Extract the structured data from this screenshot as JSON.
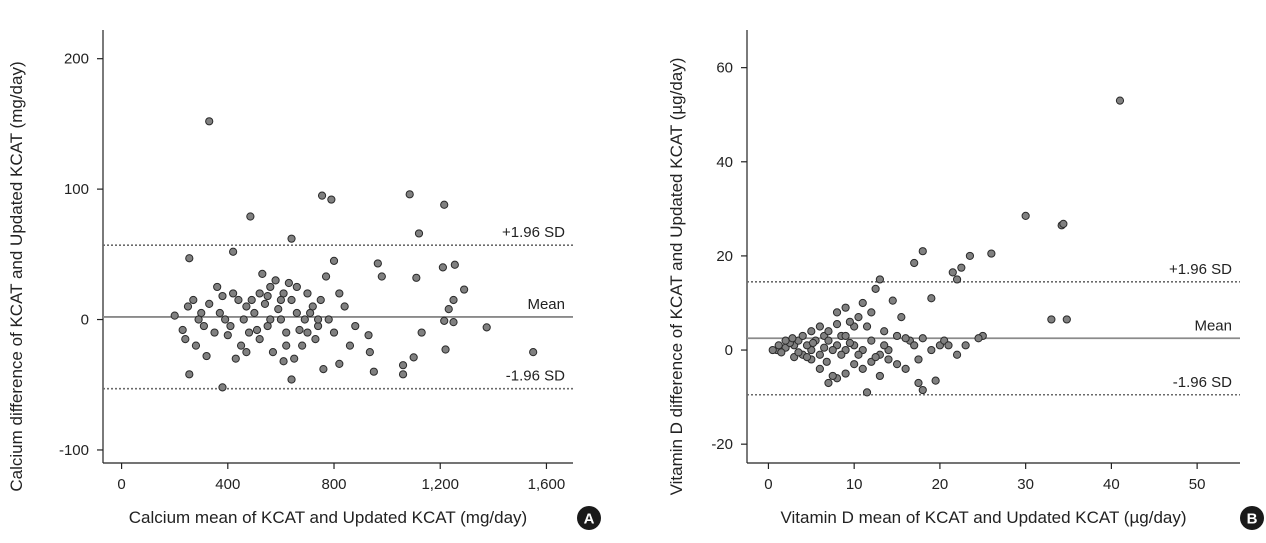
{
  "chart_data": [
    {
      "panel": "A",
      "type": "scatter",
      "xlabel": "Calcium mean of KCAT and Updated KCAT (mg/day)",
      "ylabel": "Calcium difference of KCAT and Updated KCAT (mg/day)",
      "xlim": [
        -70,
        1700
      ],
      "ylim": [
        -110,
        222
      ],
      "xticks": [
        0,
        400,
        800,
        1200,
        1600
      ],
      "xtick_labels": [
        "0",
        "400",
        "800",
        "1,200",
        "1,600"
      ],
      "yticks": [
        -100,
        0,
        100,
        200
      ],
      "ytick_labels": [
        "-100",
        "0",
        "100",
        "200"
      ],
      "reference_lines": [
        {
          "label": "+1.96 SD",
          "value": 57,
          "style": "dotted"
        },
        {
          "label": "Mean",
          "value": 2,
          "style": "solid"
        },
        {
          "label": "-1.96 SD",
          "value": -53,
          "style": "dotted"
        }
      ],
      "points": [
        [
          330,
          152
        ],
        [
          755,
          95
        ],
        [
          790,
          92
        ],
        [
          1085,
          96
        ],
        [
          1215,
          88
        ],
        [
          485,
          79
        ],
        [
          640,
          62
        ],
        [
          1120,
          66
        ],
        [
          420,
          52
        ],
        [
          255,
          47
        ],
        [
          800,
          45
        ],
        [
          965,
          43
        ],
        [
          1210,
          40
        ],
        [
          1255,
          42
        ],
        [
          1290,
          23
        ],
        [
          1110,
          32
        ],
        [
          980,
          33
        ],
        [
          770,
          33
        ],
        [
          820,
          20
        ],
        [
          1250,
          15
        ],
        [
          1232,
          8
        ],
        [
          1215,
          -1
        ],
        [
          1250,
          -2
        ],
        [
          1375,
          -6
        ],
        [
          1220,
          -23
        ],
        [
          1550,
          -25
        ],
        [
          1130,
          -10
        ],
        [
          1060,
          -35
        ],
        [
          1100,
          -29
        ],
        [
          1060,
          -42
        ],
        [
          930,
          -12
        ],
        [
          935,
          -25
        ],
        [
          950,
          -40
        ],
        [
          880,
          -5
        ],
        [
          255,
          -42
        ],
        [
          380,
          -52
        ],
        [
          640,
          -46
        ],
        [
          760,
          -38
        ],
        [
          820,
          -34
        ],
        [
          300,
          5
        ],
        [
          350,
          -10
        ],
        [
          420,
          20
        ],
        [
          470,
          10
        ],
        [
          520,
          -15
        ],
        [
          560,
          25
        ],
        [
          600,
          0
        ],
        [
          640,
          15
        ],
        [
          680,
          -20
        ],
        [
          720,
          10
        ],
        [
          270,
          15
        ],
        [
          310,
          -5
        ],
        [
          390,
          0
        ],
        [
          450,
          -20
        ],
        [
          500,
          5
        ],
        [
          550,
          -5
        ],
        [
          580,
          30
        ],
        [
          620,
          -10
        ],
        [
          660,
          5
        ],
        [
          700,
          20
        ],
        [
          740,
          -5
        ],
        [
          780,
          0
        ],
        [
          840,
          10
        ],
        [
          280,
          -20
        ],
        [
          360,
          25
        ],
        [
          430,
          -30
        ],
        [
          490,
          15
        ],
        [
          530,
          35
        ],
        [
          570,
          -25
        ],
        [
          610,
          20
        ],
        [
          650,
          -30
        ],
        [
          690,
          0
        ],
        [
          730,
          -15
        ],
        [
          200,
          3
        ],
        [
          230,
          -8
        ],
        [
          250,
          10
        ],
        [
          330,
          12
        ],
        [
          400,
          -12
        ],
        [
          460,
          0
        ],
        [
          510,
          -8
        ],
        [
          540,
          12
        ],
        [
          590,
          8
        ],
        [
          630,
          28
        ],
        [
          670,
          -8
        ],
        [
          710,
          5
        ],
        [
          750,
          15
        ],
        [
          800,
          -10
        ],
        [
          860,
          -20
        ],
        [
          290,
          0
        ],
        [
          370,
          5
        ],
        [
          410,
          -5
        ],
        [
          440,
          15
        ],
        [
          480,
          -10
        ],
        [
          520,
          20
        ],
        [
          560,
          0
        ],
        [
          600,
          15
        ],
        [
          620,
          -20
        ],
        [
          660,
          25
        ],
        [
          700,
          -10
        ],
        [
          740,
          0
        ],
        [
          240,
          -15
        ],
        [
          320,
          -28
        ],
        [
          380,
          18
        ],
        [
          470,
          -25
        ],
        [
          550,
          18
        ],
        [
          610,
          -32
        ]
      ]
    },
    {
      "panel": "B",
      "type": "scatter",
      "xlabel": "Vitamin D mean of KCAT and Updated KCAT (µg/day)",
      "ylabel": "Vitamin D difference of KCAT and Updated KCAT (µg/day)",
      "xlim": [
        -2.5,
        55
      ],
      "ylim": [
        -24,
        68
      ],
      "xticks": [
        0,
        10,
        20,
        30,
        40,
        50
      ],
      "xtick_labels": [
        "0",
        "10",
        "20",
        "30",
        "40",
        "50"
      ],
      "yticks": [
        -20,
        0,
        20,
        40,
        60
      ],
      "ytick_labels": [
        "-20",
        "0",
        "20",
        "40",
        "60"
      ],
      "reference_lines": [
        {
          "label": "+1.96 SD",
          "value": 14.5,
          "style": "dotted"
        },
        {
          "label": "Mean",
          "value": 2.5,
          "style": "solid"
        },
        {
          "label": "-1.96 SD",
          "value": -9.5,
          "style": "dotted"
        }
      ],
      "points": [
        [
          41,
          53
        ],
        [
          30,
          28.5
        ],
        [
          34.2,
          26.5
        ],
        [
          34.4,
          26.8
        ],
        [
          26,
          20.5
        ],
        [
          23.5,
          20
        ],
        [
          22.5,
          17.5
        ],
        [
          21.5,
          16.5
        ],
        [
          18,
          21
        ],
        [
          17,
          18.5
        ],
        [
          22,
          15
        ],
        [
          13,
          15
        ],
        [
          19,
          11
        ],
        [
          33,
          6.5
        ],
        [
          34.8,
          6.5
        ],
        [
          25,
          3
        ],
        [
          24.5,
          2.5
        ],
        [
          20,
          1
        ],
        [
          16.5,
          2
        ],
        [
          14,
          0
        ],
        [
          11.5,
          -9
        ],
        [
          17.5,
          -7
        ],
        [
          18,
          -8.5
        ],
        [
          19.5,
          -6.5
        ],
        [
          13,
          -5.5
        ],
        [
          12.5,
          13
        ],
        [
          12,
          8
        ],
        [
          10,
          5
        ],
        [
          9,
          9
        ],
        [
          8,
          8
        ],
        [
          8.5,
          3
        ],
        [
          10.5,
          7
        ],
        [
          11,
          10
        ],
        [
          11.5,
          5
        ],
        [
          9.5,
          6
        ],
        [
          12,
          2
        ],
        [
          13.5,
          4
        ],
        [
          14.5,
          10.5
        ],
        [
          15.5,
          7
        ],
        [
          16,
          2.5
        ],
        [
          17,
          1
        ],
        [
          18,
          2.5
        ],
        [
          19,
          0
        ],
        [
          20.5,
          2
        ],
        [
          21,
          1
        ],
        [
          22,
          -1
        ],
        [
          23,
          1
        ],
        [
          15,
          -3
        ],
        [
          16,
          -4
        ],
        [
          14,
          -2
        ],
        [
          13,
          -1
        ],
        [
          10,
          -3
        ],
        [
          9,
          -5
        ],
        [
          8,
          -6
        ],
        [
          7,
          -7
        ],
        [
          6,
          -4
        ],
        [
          7.5,
          -5.5
        ],
        [
          12,
          -2.5
        ],
        [
          11,
          -4
        ],
        [
          4,
          -1
        ],
        [
          5,
          0
        ],
        [
          3,
          1
        ],
        [
          2,
          0.5
        ],
        [
          1,
          0
        ],
        [
          0.5,
          0
        ],
        [
          1.5,
          -0.5
        ],
        [
          2.5,
          1.5
        ],
        [
          3.5,
          2
        ],
        [
          4.5,
          1
        ],
        [
          5.5,
          2
        ],
        [
          6.5,
          3
        ],
        [
          7,
          2
        ],
        [
          8,
          1
        ],
        [
          9,
          0
        ],
        [
          5,
          -2
        ],
        [
          6,
          -1
        ],
        [
          3,
          -1.5
        ],
        [
          4,
          3
        ],
        [
          5,
          4
        ],
        [
          6,
          5
        ],
        [
          7,
          4
        ],
        [
          8,
          5.5
        ],
        [
          9,
          3
        ],
        [
          10,
          1
        ],
        [
          2,
          2
        ],
        [
          3.5,
          -0.5
        ],
        [
          4.5,
          -1.5
        ],
        [
          6.5,
          0.5
        ],
        [
          7.5,
          0
        ],
        [
          8.5,
          -1
        ],
        [
          11,
          0
        ],
        [
          12.5,
          -1.5
        ],
        [
          1.2,
          1
        ],
        [
          2.8,
          2.5
        ],
        [
          5.2,
          1.5
        ],
        [
          6.8,
          -2.5
        ],
        [
          9.5,
          1.5
        ],
        [
          10.5,
          -1
        ],
        [
          13.5,
          1
        ],
        [
          15,
          3
        ],
        [
          17.5,
          -2
        ]
      ]
    }
  ]
}
